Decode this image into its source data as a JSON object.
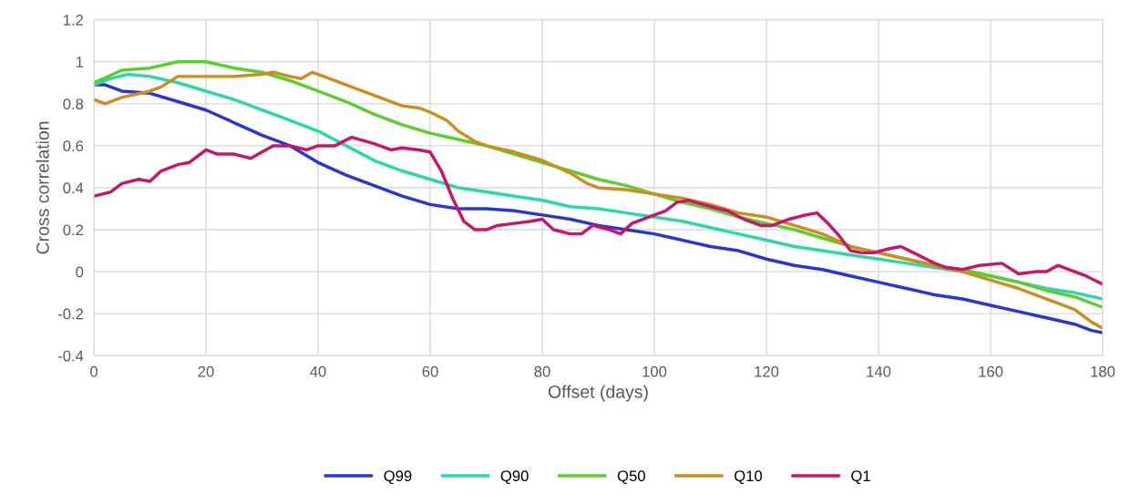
{
  "chart_data": {
    "type": "line",
    "xlabel": "Offset (days)",
    "ylabel": "Cross correlation",
    "xlim": [
      0,
      180
    ],
    "xticks": [
      0,
      20,
      40,
      60,
      80,
      100,
      120,
      140,
      160,
      180
    ],
    "ylim": [
      -0.4,
      1.2
    ],
    "yticks": [
      -0.4,
      -0.2,
      0,
      0.2,
      0.4,
      0.6,
      0.8,
      1,
      1.2
    ],
    "grid": true,
    "legend": "bottom",
    "marker": "none",
    "line_style": "solid",
    "series": [
      {
        "name": "Q99",
        "color": "#2a36d4",
        "x": [
          0,
          2,
          5,
          10,
          15,
          20,
          25,
          30,
          35,
          40,
          45,
          50,
          55,
          60,
          65,
          70,
          75,
          80,
          85,
          90,
          95,
          100,
          105,
          110,
          115,
          120,
          125,
          130,
          135,
          140,
          145,
          150,
          155,
          160,
          165,
          170,
          175,
          178,
          180
        ],
        "values": [
          0.89,
          0.89,
          0.86,
          0.85,
          0.81,
          0.77,
          0.71,
          0.65,
          0.6,
          0.52,
          0.46,
          0.41,
          0.36,
          0.32,
          0.3,
          0.3,
          0.29,
          0.27,
          0.25,
          0.22,
          0.2,
          0.18,
          0.15,
          0.12,
          0.1,
          0.06,
          0.03,
          0.01,
          -0.02,
          -0.05,
          -0.08,
          -0.11,
          -0.13,
          -0.16,
          -0.19,
          -0.22,
          -0.25,
          -0.28,
          -0.29
        ]
      },
      {
        "name": "Q90",
        "color": "#2ad8a8",
        "x": [
          0,
          3,
          6,
          10,
          15,
          20,
          25,
          30,
          35,
          40,
          45,
          50,
          55,
          60,
          65,
          70,
          75,
          80,
          85,
          90,
          95,
          100,
          105,
          110,
          115,
          120,
          125,
          130,
          135,
          140,
          145,
          150,
          155,
          160,
          165,
          170,
          175,
          180
        ],
        "values": [
          0.89,
          0.92,
          0.94,
          0.93,
          0.9,
          0.86,
          0.82,
          0.77,
          0.72,
          0.67,
          0.6,
          0.53,
          0.48,
          0.44,
          0.4,
          0.38,
          0.36,
          0.34,
          0.31,
          0.3,
          0.28,
          0.26,
          0.24,
          0.21,
          0.18,
          0.15,
          0.12,
          0.1,
          0.08,
          0.06,
          0.04,
          0.02,
          0.0,
          -0.02,
          -0.05,
          -0.08,
          -0.1,
          -0.13
        ]
      },
      {
        "name": "Q50",
        "color": "#5ccf2e",
        "x": [
          0,
          5,
          10,
          15,
          20,
          25,
          30,
          35,
          40,
          45,
          50,
          55,
          60,
          65,
          70,
          75,
          80,
          85,
          90,
          95,
          100,
          105,
          110,
          115,
          120,
          125,
          130,
          135,
          140,
          145,
          150,
          155,
          160,
          165,
          170,
          175,
          180
        ],
        "values": [
          0.9,
          0.96,
          0.97,
          1.0,
          1.0,
          0.97,
          0.95,
          0.91,
          0.86,
          0.81,
          0.75,
          0.7,
          0.66,
          0.63,
          0.6,
          0.56,
          0.52,
          0.48,
          0.44,
          0.41,
          0.37,
          0.33,
          0.3,
          0.26,
          0.23,
          0.2,
          0.16,
          0.12,
          0.09,
          0.06,
          0.03,
          0.01,
          -0.02,
          -0.05,
          -0.09,
          -0.12,
          -0.17
        ]
      },
      {
        "name": "Q10",
        "color": "#cc8e1e",
        "x": [
          0,
          2,
          5,
          10,
          12,
          15,
          20,
          25,
          30,
          32,
          35,
          37,
          39,
          42,
          45,
          50,
          55,
          58,
          60,
          63,
          65,
          68,
          70,
          75,
          80,
          85,
          88,
          90,
          95,
          100,
          105,
          110,
          115,
          120,
          125,
          130,
          135,
          140,
          145,
          150,
          155,
          160,
          165,
          170,
          175,
          178,
          180
        ],
        "values": [
          0.82,
          0.8,
          0.83,
          0.86,
          0.88,
          0.93,
          0.93,
          0.93,
          0.94,
          0.95,
          0.93,
          0.92,
          0.95,
          0.92,
          0.89,
          0.84,
          0.79,
          0.78,
          0.76,
          0.72,
          0.67,
          0.62,
          0.6,
          0.57,
          0.53,
          0.47,
          0.42,
          0.4,
          0.39,
          0.37,
          0.35,
          0.32,
          0.28,
          0.26,
          0.22,
          0.18,
          0.12,
          0.09,
          0.06,
          0.03,
          0.0,
          -0.04,
          -0.08,
          -0.13,
          -0.18,
          -0.24,
          -0.27
        ]
      },
      {
        "name": "Q1",
        "color": "#c8166e",
        "x": [
          0,
          3,
          5,
          8,
          10,
          12,
          15,
          17,
          20,
          22,
          25,
          28,
          30,
          32,
          35,
          38,
          40,
          43,
          46,
          50,
          53,
          55,
          58,
          60,
          62,
          64,
          66,
          68,
          70,
          72,
          75,
          78,
          80,
          82,
          85,
          87,
          89,
          92,
          94,
          96,
          100,
          102,
          104,
          106,
          110,
          113,
          116,
          119,
          121,
          124,
          127,
          129,
          131,
          133,
          135,
          137,
          139,
          142,
          144,
          147,
          150,
          152,
          155,
          158,
          162,
          165,
          168,
          170,
          172,
          175,
          177,
          180
        ],
        "values": [
          0.36,
          0.38,
          0.42,
          0.44,
          0.43,
          0.48,
          0.51,
          0.52,
          0.58,
          0.56,
          0.56,
          0.54,
          0.57,
          0.6,
          0.6,
          0.58,
          0.6,
          0.6,
          0.64,
          0.61,
          0.58,
          0.59,
          0.58,
          0.57,
          0.48,
          0.35,
          0.24,
          0.2,
          0.2,
          0.22,
          0.23,
          0.24,
          0.25,
          0.2,
          0.18,
          0.18,
          0.22,
          0.2,
          0.18,
          0.23,
          0.27,
          0.29,
          0.33,
          0.34,
          0.31,
          0.29,
          0.25,
          0.22,
          0.22,
          0.25,
          0.27,
          0.28,
          0.23,
          0.17,
          0.1,
          0.09,
          0.09,
          0.11,
          0.12,
          0.08,
          0.04,
          0.02,
          0.01,
          0.03,
          0.04,
          -0.01,
          0.0,
          0.0,
          0.03,
          0.0,
          -0.02,
          -0.06
        ]
      }
    ]
  }
}
